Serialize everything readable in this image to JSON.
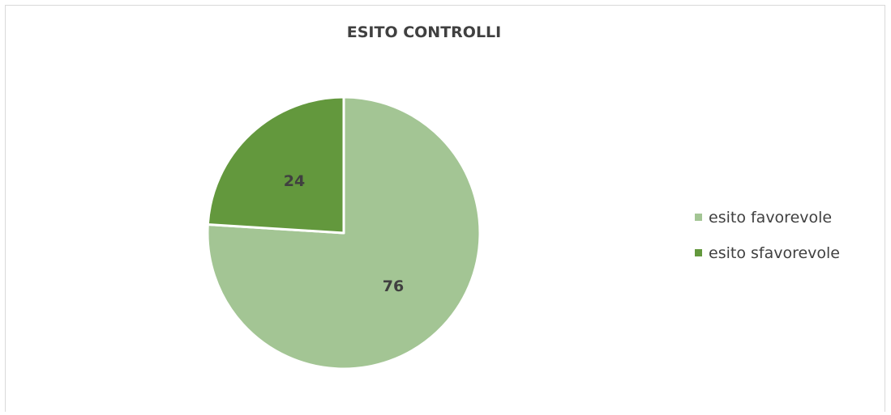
{
  "chart_data": {
    "type": "pie",
    "title": "ESITO CONTROLLI",
    "slices": [
      {
        "label": "esito favorevole",
        "value": 76,
        "color": "#a3c594"
      },
      {
        "label": "esito sfavorevole",
        "value": 24,
        "color": "#63983d"
      }
    ],
    "data_labels_shown": true,
    "legend_position": "right"
  }
}
